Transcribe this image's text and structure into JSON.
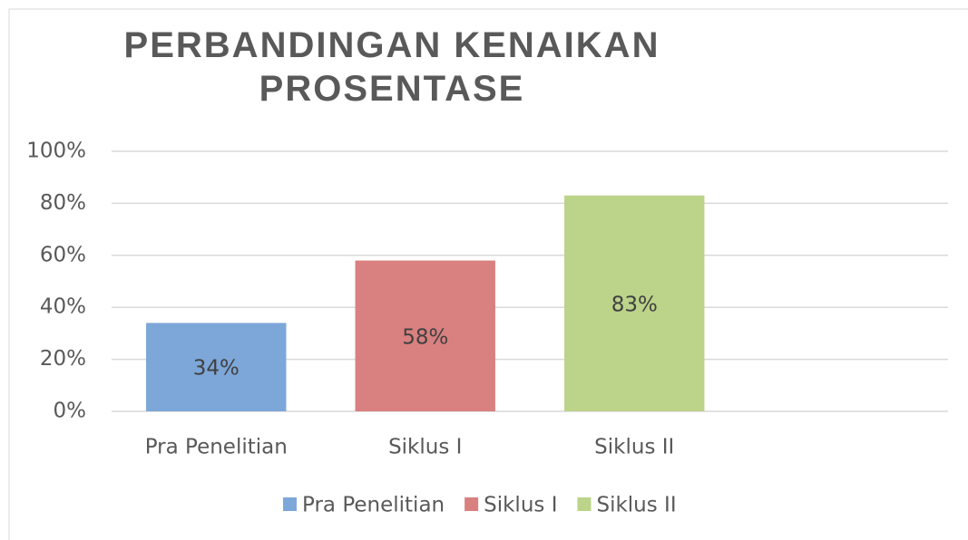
{
  "chart_data": {
    "type": "bar",
    "title": "PERBANDINGAN KENAIKAN PROSENTASE",
    "categories": [
      "Pra Penelitian",
      "Siklus I",
      "Siklus II",
      null
    ],
    "values": [
      34,
      58,
      83,
      null
    ],
    "value_labels": [
      "34%",
      "58%",
      "83%",
      null
    ],
    "colors": [
      "#7da7d9",
      "#d98080",
      "#bcd38a",
      null
    ],
    "ylim": [
      0,
      100
    ],
    "yticks": [
      {
        "value": 0,
        "label": "0%"
      },
      {
        "value": 20,
        "label": "20%"
      },
      {
        "value": 40,
        "label": "40%"
      },
      {
        "value": 60,
        "label": "60%"
      },
      {
        "value": 80,
        "label": "80%"
      },
      {
        "value": 100,
        "label": "100%"
      }
    ],
    "grid": true,
    "legend": "bottom"
  }
}
